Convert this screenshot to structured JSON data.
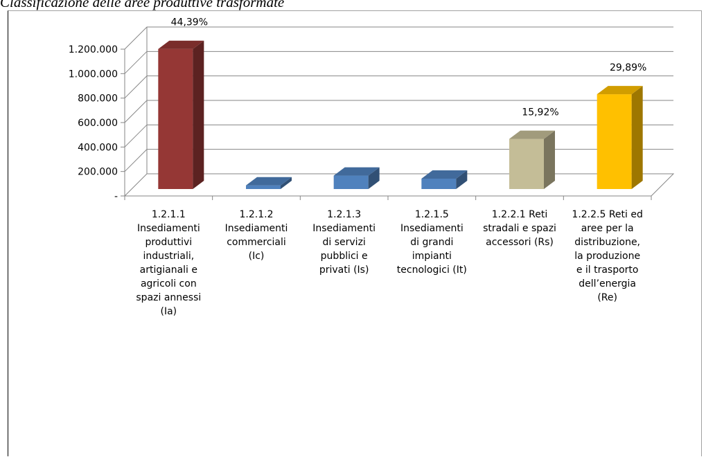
{
  "page": {
    "title": "Classificazione delle aree produttive trasformate"
  },
  "chart_data": {
    "type": "bar",
    "three_d": true,
    "grid": true,
    "legend": "none",
    "title": "",
    "xlabel": "",
    "ylabel": "",
    "ylim": [
      0,
      1200000
    ],
    "y_ticks": [
      {
        "value": 0,
        "label": "-"
      },
      {
        "value": 200000,
        "label": "200.000"
      },
      {
        "value": 400000,
        "label": "400.000"
      },
      {
        "value": 600000,
        "label": "600.000"
      },
      {
        "value": 800000,
        "label": "800.000"
      },
      {
        "value": 1000000,
        "label": "1.000.000"
      },
      {
        "value": 1200000,
        "label": "1.200.000"
      }
    ],
    "categories": [
      "1.2.1.1\nInsediamenti\nproduttivi\nindustriali,\nartigianali e\nagricoli con\nspazi annessi\n(Ia)",
      "1.2.1.2\nInsediamenti\ncommerciali\n(Ic)",
      "1.2.1.3\nInsediamenti\ndi servizi\npubblici e\nprivati (Is)",
      "1.2.1.5\nInsediamenti\ndi grandi\nimpianti\ntecnologici (It)",
      "1.2.2.1 Reti\nstradali e spazi\naccessori (Rs)",
      "1.2.2.5 Reti ed\naree per la\ndistribuzione,\nla produzione\ne il trasporto\ndell’energia\n(Re)"
    ],
    "values": [
      1145000,
      30000,
      110000,
      85000,
      410000,
      775000
    ],
    "data_labels": [
      "44,39%",
      "",
      "",
      "",
      "15,92%",
      "29,89%"
    ],
    "colors": [
      "#953735",
      "#4f81bd",
      "#4f81bd",
      "#4f81bd",
      "#c4bd97",
      "#ffc000"
    ]
  }
}
